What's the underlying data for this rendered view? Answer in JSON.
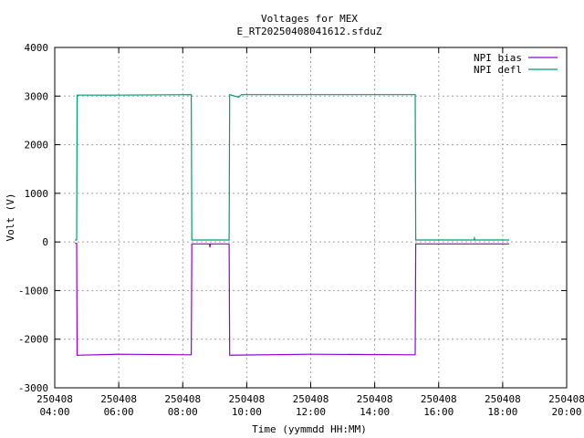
{
  "chart_data": {
    "type": "line",
    "title": "Voltages for MEX",
    "subtitle": "E_RT20250408041612.sfduZ",
    "xlabel": "Time (yymmdd HH:MM)",
    "ylabel": "Volt (V)",
    "xlim": [
      "2025-04-08 04:00",
      "2025-04-08 20:00"
    ],
    "ylim": [
      -3000,
      4000
    ],
    "grid": true,
    "legend_position": "top-right",
    "x_ticks": [
      {
        "t": "2025-04-08 04:00",
        "date": "250408",
        "time": "04:00"
      },
      {
        "t": "2025-04-08 06:00",
        "date": "250408",
        "time": "06:00"
      },
      {
        "t": "2025-04-08 08:00",
        "date": "250408",
        "time": "08:00"
      },
      {
        "t": "2025-04-08 10:00",
        "date": "250408",
        "time": "10:00"
      },
      {
        "t": "2025-04-08 12:00",
        "date": "250408",
        "time": "12:00"
      },
      {
        "t": "2025-04-08 14:00",
        "date": "250408",
        "time": "14:00"
      },
      {
        "t": "2025-04-08 16:00",
        "date": "250408",
        "time": "16:00"
      },
      {
        "t": "2025-04-08 18:00",
        "date": "250408",
        "time": "18:00"
      },
      {
        "t": "2025-04-08 20:00",
        "date": "250408",
        "time": "20:00"
      }
    ],
    "y_ticks": [
      -3000,
      -2000,
      -1000,
      0,
      1000,
      2000,
      3000,
      4000
    ],
    "series": [
      {
        "name": "NPI bias",
        "color": "#9400d3",
        "points": [
          [
            "2025-04-08 04:38",
            -30
          ],
          [
            "2025-04-08 04:41",
            -30
          ],
          [
            "2025-04-08 04:42",
            -2330
          ],
          [
            "2025-04-08 06:00",
            -2310
          ],
          [
            "2025-04-08 08:16",
            -2320
          ],
          [
            "2025-04-08 08:17",
            -40
          ],
          [
            "2025-04-08 08:50",
            -40
          ],
          [
            "2025-04-08 08:51",
            -110
          ],
          [
            "2025-04-08 08:52",
            -40
          ],
          [
            "2025-04-08 09:27",
            -40
          ],
          [
            "2025-04-08 09:28",
            -2330
          ],
          [
            "2025-04-08 12:00",
            -2310
          ],
          [
            "2025-04-08 15:16",
            -2320
          ],
          [
            "2025-04-08 15:17",
            -40
          ],
          [
            "2025-04-08 18:12",
            -40
          ]
        ]
      },
      {
        "name": "NPI defl",
        "color": "#009e73",
        "points": [
          [
            "2025-04-08 04:38",
            40
          ],
          [
            "2025-04-08 04:41",
            40
          ],
          [
            "2025-04-08 04:42",
            3020
          ],
          [
            "2025-04-08 06:00",
            3020
          ],
          [
            "2025-04-08 08:16",
            3030
          ],
          [
            "2025-04-08 08:17",
            40
          ],
          [
            "2025-04-08 09:27",
            40
          ],
          [
            "2025-04-08 09:28",
            3030
          ],
          [
            "2025-04-08 09:45",
            2980
          ],
          [
            "2025-04-08 09:50",
            3030
          ],
          [
            "2025-04-08 12:00",
            3030
          ],
          [
            "2025-04-08 15:16",
            3030
          ],
          [
            "2025-04-08 15:17",
            40
          ],
          [
            "2025-04-08 17:06",
            40
          ],
          [
            "2025-04-08 17:07",
            80
          ],
          [
            "2025-04-08 17:08",
            40
          ],
          [
            "2025-04-08 18:12",
            40
          ]
        ]
      }
    ]
  }
}
